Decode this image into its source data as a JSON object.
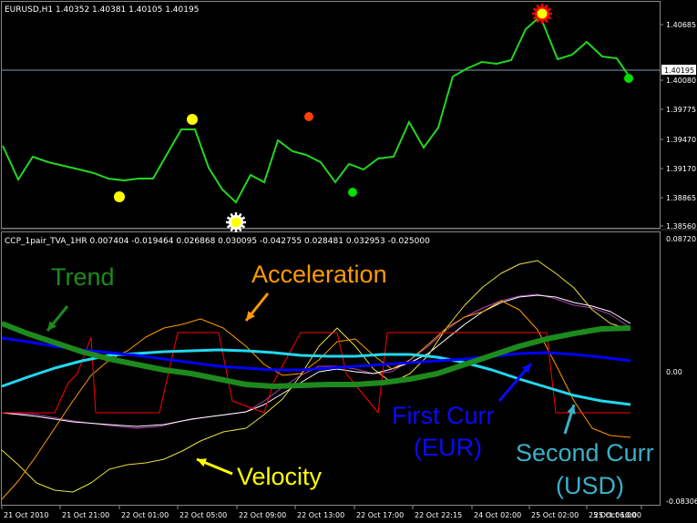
{
  "main_window": {
    "info": "EURUSD,H1  1.40352 1.40381 1.40105 1.40195",
    "price_labels": [
      "1.40685",
      "1.40080",
      "1.39775",
      "1.39470",
      "1.39170",
      "1.38865",
      "1.38560"
    ],
    "current_price": "1.40195",
    "colors": {
      "price_line": "#22d622",
      "bid_line": "#8a9ab8",
      "yellow_dot": "#ffff00",
      "red_dot": "#ff4000",
      "green_dot": "#00e000"
    }
  },
  "indicator_window": {
    "info": "CCP_1pair_TVA_1HR 0.007404 -0.019464 0.026868 0.030095 -0.042755 0.028481 0.032953 -0.025000",
    "scale_labels": [
      "0.08720",
      "0.00",
      "-0.08306"
    ],
    "annotations": {
      "trend": "Trend",
      "acceleration": "Acceleration",
      "velocity": "Velocity",
      "first_curr_line1": "First Curr",
      "first_curr_line2": "(EUR)",
      "second_curr_line1": "Second Curr",
      "second_curr_line2": "(USD)"
    },
    "colors": {
      "trend": "#1d8a1d",
      "acceleration": "#ff9a00",
      "velocity": "#ffff00",
      "first_curr": "#0000ff",
      "second_curr": "#22d8f0",
      "first_curr_label": "#0a0aff",
      "second_curr_label": "#3bb0c8",
      "red_step": "#ff0000"
    }
  },
  "time_axis": [
    "21 Oct 2010",
    "21 Oct 21:00",
    "22 Oct 01:00",
    "22 Oct 05:00",
    "22 Oct 09:00",
    "22 Oct 13:00",
    "22 Oct 17:00",
    "22 Oct 22:15",
    "24 Oct 02:00",
    "25 Oct 02:00",
    "25 Oct 06:00",
    "25 Oct 10:00"
  ]
}
